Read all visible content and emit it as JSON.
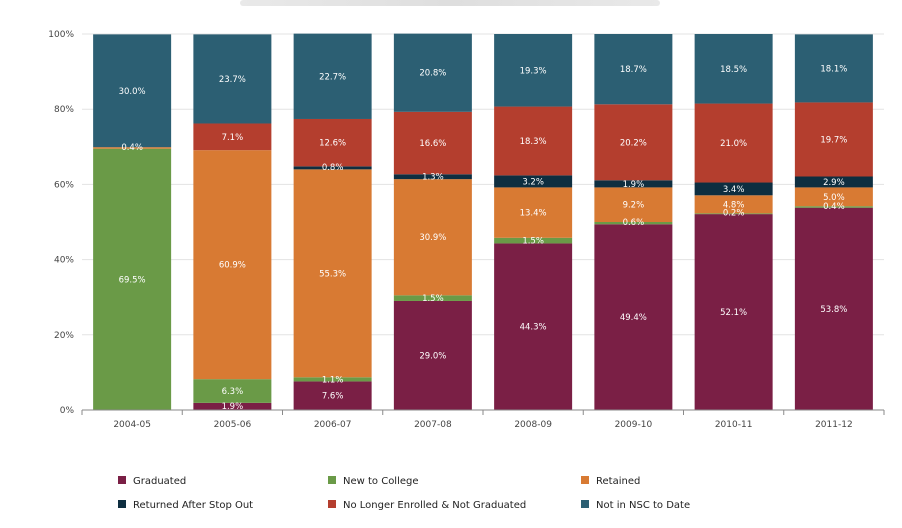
{
  "chart_data": {
    "type": "bar",
    "stacked": true,
    "title": "",
    "xlabel": "",
    "ylabel": "",
    "ylim": [
      0,
      100
    ],
    "grid": true,
    "legend_position": "bottom",
    "y_ticks": [
      "0%",
      "20%",
      "40%",
      "60%",
      "80%",
      "100%"
    ],
    "categories": [
      "2004-05",
      "2005-06",
      "2006-07",
      "2007-08",
      "2008-09",
      "2009-10",
      "2010-11",
      "2011-12"
    ],
    "series": [
      {
        "name": "Graduated",
        "color": "#7a1f45",
        "values": [
          0,
          1.9,
          7.6,
          29.0,
          44.3,
          49.4,
          52.1,
          53.8
        ],
        "labels": [
          "",
          "1.9%",
          "7.6%",
          "29.0%",
          "44.3%",
          "49.4%",
          "52.1%",
          "53.8%"
        ]
      },
      {
        "name": "New to College",
        "color": "#6a9a47",
        "values": [
          69.5,
          6.3,
          1.1,
          1.5,
          1.5,
          0.6,
          0.2,
          0.4
        ],
        "labels": [
          "69.5%",
          "6.3%",
          "1.1%",
          "1.5%",
          "1.5%",
          "0.6%",
          "0.2%",
          "0.4%"
        ]
      },
      {
        "name": "Retained",
        "color": "#d87a33",
        "values": [
          0.4,
          60.9,
          55.3,
          30.9,
          13.4,
          9.2,
          4.8,
          5.0
        ],
        "labels": [
          "0.4%",
          "60.9%",
          "55.3%",
          "30.9%",
          "13.4%",
          "9.2%",
          "4.8%",
          "5.0%"
        ]
      },
      {
        "name": "Returned After Stop Out",
        "color": "#0e2e40",
        "values": [
          0,
          0,
          0.8,
          1.3,
          3.2,
          1.9,
          3.4,
          2.9
        ],
        "labels": [
          "",
          "",
          "0.8%",
          "1.3%",
          "3.2%",
          "1.9%",
          "3.4%",
          "2.9%"
        ]
      },
      {
        "name": "No Longer Enrolled & Not Graduated",
        "color": "#b43e2e",
        "values": [
          0,
          7.1,
          12.6,
          16.6,
          18.3,
          20.2,
          21.0,
          19.7
        ],
        "labels": [
          "",
          "7.1%",
          "12.6%",
          "16.6%",
          "18.3%",
          "20.2%",
          "21.0%",
          "19.7%"
        ]
      },
      {
        "name": "Not in NSC to Date",
        "color": "#2c5f73",
        "values": [
          30.0,
          23.7,
          22.7,
          20.8,
          19.3,
          18.7,
          18.5,
          18.1
        ],
        "labels": [
          "30.0%",
          "23.7%",
          "22.7%",
          "20.8%",
          "19.3%",
          "18.7%",
          "18.5%",
          "18.1%"
        ]
      }
    ]
  }
}
